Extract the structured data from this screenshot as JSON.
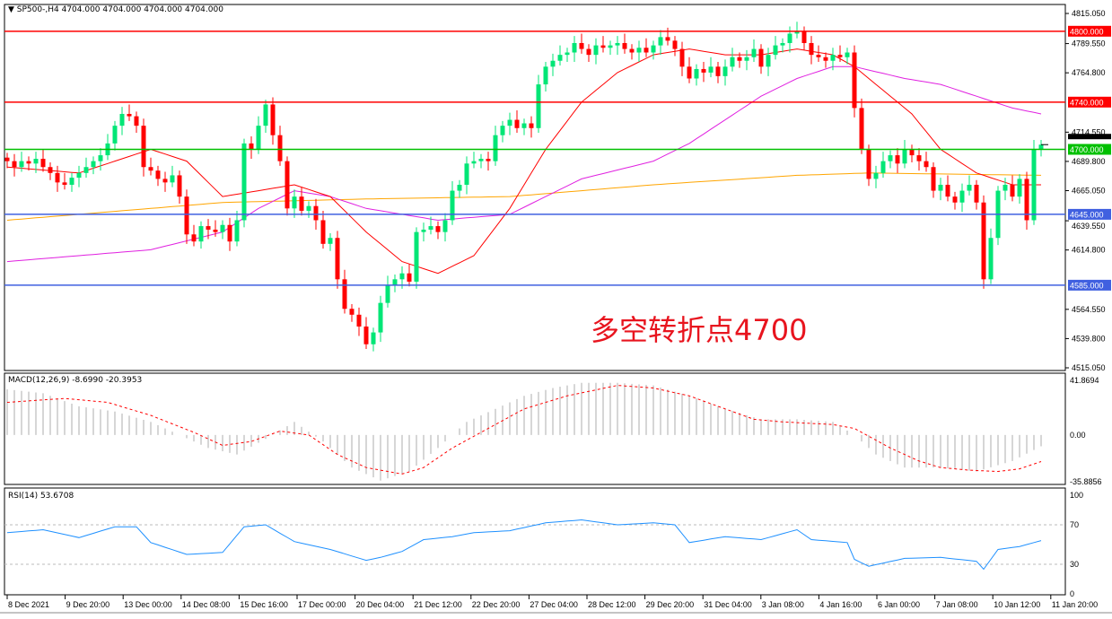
{
  "header": {
    "symbol_label": "SP500-,H4",
    "ohlc": "4704.000 4704.000 4704.000 4704.000"
  },
  "annotation": "多空转折点4700",
  "colors": {
    "bull": "#00e676",
    "bear": "#ff0000",
    "ma_fast": "#ff0000",
    "ma_mid": "#e020e0",
    "ma_slow": "#ffa500",
    "rsi": "#1e90ff",
    "macd_hist": "#c0c0c0",
    "macd_signal": "#ff0000"
  },
  "chart_data": [
    {
      "type": "candlestick",
      "ylim": [
        4515.05,
        4815.05
      ],
      "y_ticks": [
        "4815.050",
        "4789.550",
        "4764.800",
        "4714.550",
        "4689.800",
        "4665.050",
        "4639.550",
        "4614.800",
        "4564.550",
        "4539.800",
        "4515.050"
      ],
      "x_ticks": [
        "8 Dec 2021",
        "9 Dec 20:00",
        "13 Dec 00:00",
        "14 Dec 08:00",
        "15 Dec 16:00",
        "17 Dec 00:00",
        "20 Dec 04:00",
        "21 Dec 12:00",
        "22 Dec 20:00",
        "27 Dec 04:00",
        "28 Dec 12:00",
        "29 Dec 20:00",
        "31 Dec 04:00",
        "3 Jan 08:00",
        "4 Jan 16:00",
        "6 Jan 00:00",
        "7 Jan 08:00",
        "10 Jan 12:00",
        "11 Jan 20:00"
      ],
      "close": [
        4690,
        4685,
        4690,
        4688,
        4692,
        4685,
        4680,
        4672,
        4670,
        4676,
        4680,
        4685,
        4690,
        4695,
        4705,
        4720,
        4730,
        4728,
        4720,
        4685,
        4682,
        4675,
        4672,
        4678,
        4660,
        4628,
        4622,
        4635,
        4632,
        4630,
        4636,
        4622,
        4640,
        4705,
        4700,
        4720,
        4738,
        4712,
        4690,
        4650,
        4660,
        4648,
        4652,
        4640,
        4620,
        4625,
        4590,
        4565,
        4560,
        4550,
        4535,
        4545,
        4570,
        4585,
        4590,
        4595,
        4588,
        4630,
        4632,
        4635,
        4630,
        4640,
        4665,
        4670,
        4688,
        4690,
        4692,
        4690,
        4712,
        4720,
        4725,
        4718,
        4722,
        4718,
        4755,
        4770,
        4775,
        4780,
        4782,
        4790,
        4785,
        4780,
        4788,
        4786,
        4788,
        4790,
        4785,
        4782,
        4786,
        4782,
        4788,
        4795,
        4792,
        4785,
        4770,
        4760,
        4768,
        4765,
        4770,
        4762,
        4770,
        4778,
        4775,
        4778,
        4785,
        4770,
        4780,
        4788,
        4790,
        4798,
        4800,
        4790,
        4780,
        4778,
        4775,
        4780,
        4778,
        4782,
        4735,
        4700,
        4675,
        4680,
        4690,
        4695,
        4688,
        4700,
        4695,
        4690,
        4685,
        4665,
        4670,
        4660,
        4655,
        4665,
        4670,
        4655,
        4590,
        4625,
        4665,
        4670,
        4660,
        4675,
        4640,
        4700,
        4704
      ],
      "ma_fast": [
        [
          0,
          4685
        ],
        [
          10,
          4680
        ],
        [
          15,
          4690
        ],
        [
          20,
          4700
        ],
        [
          25,
          4690
        ],
        [
          30,
          4660
        ],
        [
          35,
          4665
        ],
        [
          40,
          4670
        ],
        [
          45,
          4660
        ],
        [
          50,
          4630
        ],
        [
          55,
          4605
        ],
        [
          60,
          4595
        ],
        [
          65,
          4610
        ],
        [
          70,
          4650
        ],
        [
          75,
          4700
        ],
        [
          80,
          4740
        ],
        [
          85,
          4765
        ],
        [
          90,
          4780
        ],
        [
          95,
          4785
        ],
        [
          100,
          4780
        ],
        [
          105,
          4780
        ],
        [
          110,
          4785
        ],
        [
          115,
          4780
        ],
        [
          118,
          4770
        ],
        [
          122,
          4750
        ],
        [
          126,
          4730
        ],
        [
          130,
          4700
        ],
        [
          135,
          4680
        ],
        [
          140,
          4670
        ],
        [
          144,
          4670
        ]
      ],
      "ma_mid": [
        [
          0,
          4605
        ],
        [
          10,
          4610
        ],
        [
          20,
          4615
        ],
        [
          30,
          4630
        ],
        [
          35,
          4650
        ],
        [
          40,
          4665
        ],
        [
          45,
          4660
        ],
        [
          50,
          4650
        ],
        [
          55,
          4645
        ],
        [
          60,
          4640
        ],
        [
          70,
          4645
        ],
        [
          75,
          4660
        ],
        [
          80,
          4675
        ],
        [
          90,
          4690
        ],
        [
          95,
          4705
        ],
        [
          100,
          4725
        ],
        [
          105,
          4745
        ],
        [
          110,
          4760
        ],
        [
          115,
          4770
        ],
        [
          118,
          4770
        ],
        [
          125,
          4760
        ],
        [
          130,
          4755
        ],
        [
          135,
          4745
        ],
        [
          140,
          4735
        ],
        [
          144,
          4730
        ]
      ],
      "ma_slow": [
        [
          0,
          4640
        ],
        [
          30,
          4655
        ],
        [
          50,
          4658
        ],
        [
          70,
          4660
        ],
        [
          90,
          4670
        ],
        [
          110,
          4678
        ],
        [
          120,
          4680
        ],
        [
          144,
          4678
        ]
      ],
      "levels": [
        {
          "value": 4800,
          "label": "4800.000",
          "color": "#ff0000"
        },
        {
          "value": 4740,
          "label": "4740.000",
          "color": "#ff0000"
        },
        {
          "value": 4700,
          "label": "4700.000",
          "color": "#00c000"
        },
        {
          "value": 4645,
          "label": "4645.000",
          "color": "#4060e0"
        },
        {
          "value": 4585,
          "label": "4585.000",
          "color": "#4060e0"
        }
      ],
      "current_price": {
        "value": 4704,
        "label": "4704.000"
      }
    },
    {
      "type": "bar",
      "title": "MACD(12,26,9) -8.6990 -20.3953",
      "ylim": [
        -35.8856,
        41.8694
      ],
      "y_ticks": [
        "41.8694",
        "0.00",
        "-35.8856"
      ],
      "histogram": [
        [
          0,
          35
        ],
        [
          5,
          32
        ],
        [
          10,
          22
        ],
        [
          15,
          18
        ],
        [
          20,
          10
        ],
        [
          24,
          0
        ],
        [
          28,
          -10
        ],
        [
          32,
          -15
        ],
        [
          36,
          -3
        ],
        [
          40,
          10
        ],
        [
          44,
          -5
        ],
        [
          48,
          -25
        ],
        [
          52,
          -35
        ],
        [
          56,
          -28
        ],
        [
          60,
          -10
        ],
        [
          64,
          10
        ],
        [
          68,
          20
        ],
        [
          72,
          30
        ],
        [
          76,
          36
        ],
        [
          80,
          40
        ],
        [
          85,
          40
        ],
        [
          90,
          38
        ],
        [
          95,
          30
        ],
        [
          100,
          20
        ],
        [
          105,
          12
        ],
        [
          110,
          12
        ],
        [
          115,
          10
        ],
        [
          118,
          0
        ],
        [
          121,
          -15
        ],
        [
          125,
          -25
        ],
        [
          130,
          -25
        ],
        [
          135,
          -28
        ],
        [
          140,
          -20
        ],
        [
          144,
          -8.7
        ]
      ],
      "signal": [
        [
          0,
          25
        ],
        [
          8,
          28
        ],
        [
          14,
          25
        ],
        [
          20,
          15
        ],
        [
          26,
          2
        ],
        [
          30,
          -8
        ],
        [
          34,
          -5
        ],
        [
          38,
          3
        ],
        [
          42,
          0
        ],
        [
          46,
          -15
        ],
        [
          50,
          -25
        ],
        [
          55,
          -30
        ],
        [
          58,
          -25
        ],
        [
          62,
          -10
        ],
        [
          67,
          5
        ],
        [
          72,
          20
        ],
        [
          78,
          30
        ],
        [
          85,
          38
        ],
        [
          90,
          36
        ],
        [
          95,
          30
        ],
        [
          100,
          20
        ],
        [
          104,
          12
        ],
        [
          108,
          10
        ],
        [
          115,
          8
        ],
        [
          118,
          5
        ],
        [
          123,
          -10
        ],
        [
          127,
          -20
        ],
        [
          130,
          -25
        ],
        [
          134,
          -27
        ],
        [
          138,
          -28
        ],
        [
          141,
          -26
        ],
        [
          144,
          -20.4
        ]
      ]
    },
    {
      "type": "line",
      "title": "RSI(14) 53.6708",
      "ylim": [
        0,
        100
      ],
      "y_ticks": [
        "100",
        "70",
        "30",
        "0"
      ],
      "levels": [
        70,
        30
      ],
      "values": [
        [
          0,
          62
        ],
        [
          5,
          65
        ],
        [
          10,
          57
        ],
        [
          15,
          68
        ],
        [
          18,
          68
        ],
        [
          20,
          52
        ],
        [
          25,
          40
        ],
        [
          30,
          42
        ],
        [
          33,
          68
        ],
        [
          36,
          70
        ],
        [
          40,
          53
        ],
        [
          45,
          45
        ],
        [
          50,
          34
        ],
        [
          52,
          37
        ],
        [
          55,
          43
        ],
        [
          58,
          55
        ],
        [
          62,
          58
        ],
        [
          65,
          62
        ],
        [
          70,
          64
        ],
        [
          75,
          72
        ],
        [
          80,
          75
        ],
        [
          85,
          70
        ],
        [
          90,
          72
        ],
        [
          93,
          70
        ],
        [
          95,
          52
        ],
        [
          100,
          58
        ],
        [
          105,
          55
        ],
        [
          110,
          65
        ],
        [
          112,
          55
        ],
        [
          117,
          52
        ],
        [
          118,
          35
        ],
        [
          120,
          28
        ],
        [
          125,
          36
        ],
        [
          130,
          37
        ],
        [
          135,
          33
        ],
        [
          136,
          25
        ],
        [
          138,
          45
        ],
        [
          141,
          48
        ],
        [
          144,
          54
        ]
      ]
    }
  ]
}
